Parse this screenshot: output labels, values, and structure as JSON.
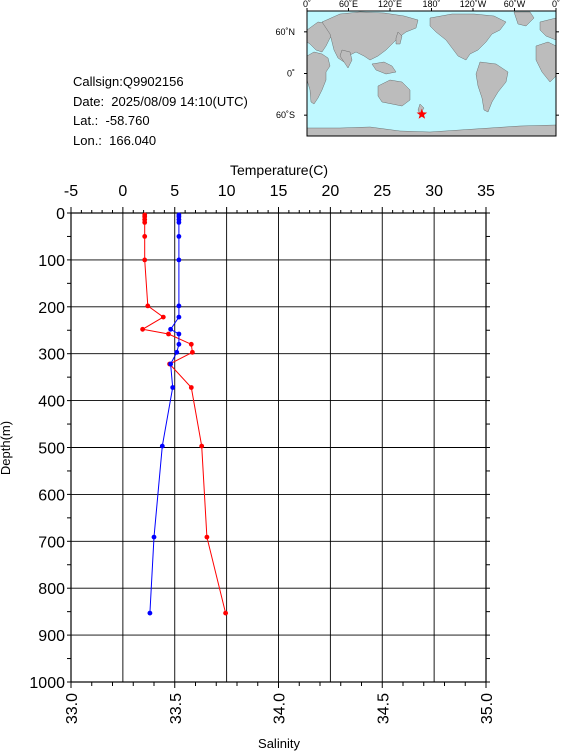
{
  "info": {
    "callsign": "Callsign:Q9902156",
    "date": "Date:  2025/08/09 14:10(UTC)",
    "lat": "Lat.:  -58.760",
    "lon": "Lon.:  166.040"
  },
  "map": {
    "top_labels": [
      "0˚",
      "60˚E",
      "120˚E",
      "180˚",
      "120˚W",
      "60˚W",
      "0˚"
    ],
    "side_labels": [
      "60˚N",
      "0˚",
      "60˚S"
    ],
    "ocean_color": "#bff8ff",
    "land_color": "#bcbcbc",
    "marker_color": "#ff0000",
    "marker_lat": -58.76,
    "marker_lon": 166.04
  },
  "chart_data": {
    "type": "line",
    "ylabel": "Depth(m)",
    "temp_label": "Temperature(C)",
    "sal_label": "Salinity",
    "ylim": [
      1000,
      0
    ],
    "temp_lim": [
      -5,
      35
    ],
    "sal_lim": [
      33.0,
      35.0
    ],
    "y_ticks": [
      "0",
      "100",
      "200",
      "300",
      "400",
      "500",
      "600",
      "700",
      "800",
      "900",
      "1000"
    ],
    "temp_ticks": [
      "-5",
      "0",
      "5",
      "10",
      "15",
      "20",
      "25",
      "30",
      "35"
    ],
    "sal_ticks": [
      "33.0",
      "33.5",
      "34.0",
      "34.5",
      "35.0"
    ],
    "grid": true,
    "series": [
      {
        "color": "#ff0000",
        "axis": "temperature",
        "points": [
          [
            2.1,
            4
          ],
          [
            2.1,
            8
          ],
          [
            2.1,
            14
          ],
          [
            2.1,
            20
          ],
          [
            2.1,
            50
          ],
          [
            2.1,
            100
          ],
          [
            2.4,
            198
          ],
          [
            3.9,
            222
          ],
          [
            1.9,
            248
          ],
          [
            4.4,
            258
          ],
          [
            6.6,
            280
          ],
          [
            6.7,
            297
          ],
          [
            4.5,
            322
          ],
          [
            6.6,
            372
          ],
          [
            7.6,
            497
          ],
          [
            8.1,
            691
          ],
          [
            9.9,
            853
          ]
        ]
      },
      {
        "color": "#0000ff",
        "axis": "salinity",
        "points": [
          [
            33.52,
            4
          ],
          [
            33.52,
            8
          ],
          [
            33.52,
            14
          ],
          [
            33.52,
            20
          ],
          [
            33.52,
            50
          ],
          [
            33.52,
            100
          ],
          [
            33.52,
            198
          ],
          [
            33.52,
            222
          ],
          [
            33.48,
            248
          ],
          [
            33.52,
            258
          ],
          [
            33.52,
            280
          ],
          [
            33.51,
            297
          ],
          [
            33.48,
            322
          ],
          [
            33.49,
            372
          ],
          [
            33.44,
            497
          ],
          [
            33.4,
            691
          ],
          [
            33.38,
            853
          ]
        ]
      }
    ]
  }
}
